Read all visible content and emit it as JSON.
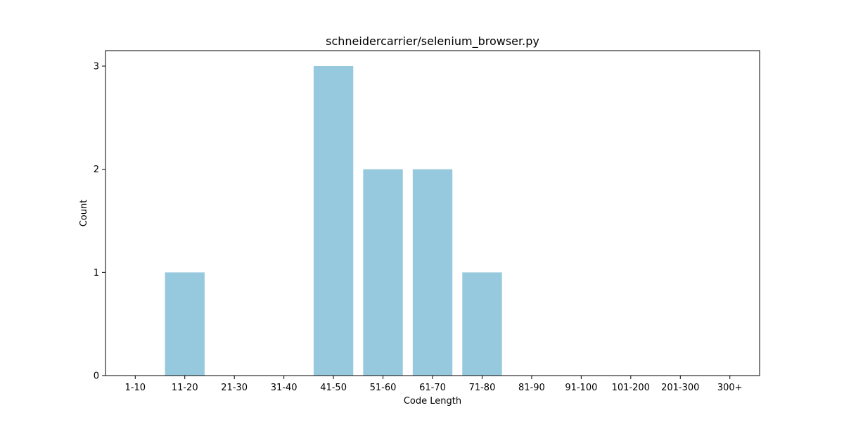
{
  "chart_data": {
    "type": "bar",
    "title": "schneidercarrier/selenium_browser.py",
    "xlabel": "Code Length",
    "ylabel": "Count",
    "categories": [
      "1-10",
      "11-20",
      "21-30",
      "31-40",
      "41-50",
      "51-60",
      "61-70",
      "71-80",
      "81-90",
      "91-100",
      "101-200",
      "201-300",
      "300+"
    ],
    "values": [
      0,
      1,
      0,
      0,
      3,
      2,
      2,
      1,
      0,
      0,
      0,
      0,
      0
    ],
    "ylim": [
      0,
      3.15
    ],
    "yticks": [
      0,
      1,
      2,
      3
    ],
    "bar_color": "#96c9dd",
    "grid": false,
    "legend": "none"
  }
}
